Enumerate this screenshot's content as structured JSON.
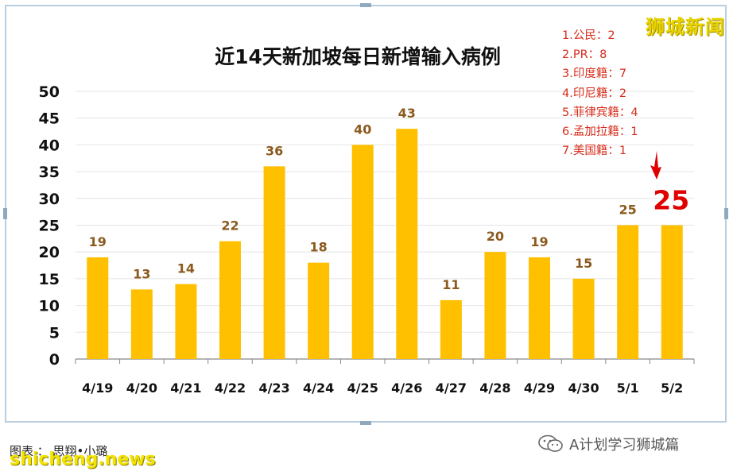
{
  "chart_data": {
    "type": "bar",
    "title": "近14天新加坡每日新增输入病例",
    "categories": [
      "4/19",
      "4/20",
      "4/21",
      "4/22",
      "4/23",
      "4/24",
      "4/25",
      "4/26",
      "4/27",
      "4/28",
      "4/29",
      "4/30",
      "5/1",
      "5/2"
    ],
    "values": [
      19,
      13,
      14,
      22,
      36,
      18,
      40,
      43,
      11,
      20,
      19,
      15,
      25,
      25
    ],
    "ylim": [
      0,
      50
    ],
    "yticks": [
      "0",
      "5",
      "10",
      "15",
      "20",
      "25",
      "30",
      "35",
      "40",
      "45",
      "50"
    ],
    "grid": true,
    "highlight_label": "25"
  },
  "notes": [
    "1.公民：2",
    "2.PR：8",
    "3.印度籍：7",
    "4.印尼籍：2",
    "5.菲律宾籍：4",
    "6.孟加拉籍：1",
    "7.美国籍：1"
  ],
  "brand_top": "狮城新闻",
  "credit": "图表 ： 思翔•小璐",
  "brand_bottom": "shicheng.news",
  "wechat_label": "A计划学习狮城篇",
  "colors": {
    "bar": "#FFC000",
    "value_label": "#8B5A1E",
    "highlight": "#E00000",
    "notes": "#d72d1c",
    "frame": "#b9cfe0"
  }
}
